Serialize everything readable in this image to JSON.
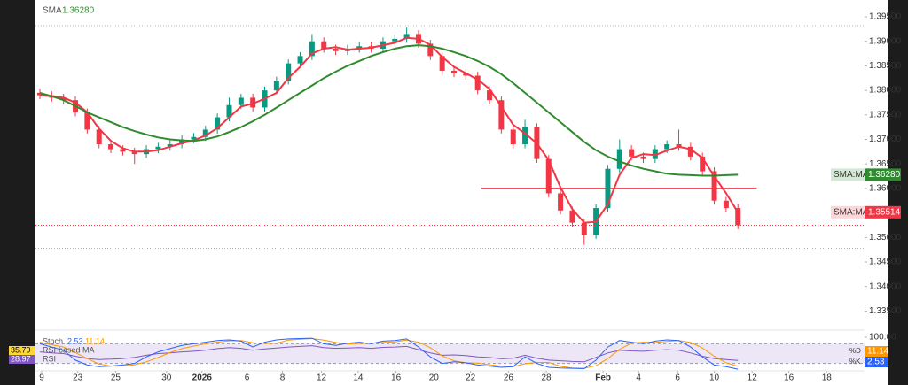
{
  "chart_data": {
    "type": "candlestick",
    "up_color": "#089981",
    "down_color": "#f23645",
    "xlim": [
      0,
      69.7
    ],
    "xticks": [
      {
        "value": 0.15,
        "label": "9"
      },
      {
        "value": 3.2,
        "label": "23"
      },
      {
        "value": 6.4,
        "label": "25"
      },
      {
        "value": 10.7,
        "label": "30"
      },
      {
        "value": 13.7,
        "label": "2026"
      },
      {
        "value": 17.5,
        "label": "6"
      },
      {
        "value": 20.5,
        "label": "8"
      },
      {
        "value": 23.8,
        "label": "12"
      },
      {
        "value": 26.9,
        "label": "14"
      },
      {
        "value": 30.1,
        "label": "16"
      },
      {
        "value": 33.3,
        "label": "20"
      },
      {
        "value": 36.4,
        "label": "22"
      },
      {
        "value": 39.6,
        "label": "26"
      },
      {
        "value": 42.8,
        "label": "28"
      },
      {
        "value": 47.6,
        "label": "Feb"
      },
      {
        "value": 50.6,
        "label": "4"
      },
      {
        "value": 53.9,
        "label": "6"
      },
      {
        "value": 57.0,
        "label": "10"
      },
      {
        "value": 60.2,
        "label": "12"
      },
      {
        "value": 63.3,
        "label": "16"
      },
      {
        "value": 66.5,
        "label": "18"
      }
    ],
    "ylim": [
      1.33164,
      1.39843
    ],
    "yticks": [
      {
        "value": 1.395,
        "label": "1.39500"
      },
      {
        "value": 1.39,
        "label": "1.39000"
      },
      {
        "value": 1.385,
        "label": "1.38500"
      },
      {
        "value": 1.38,
        "label": "1.38000"
      },
      {
        "value": 1.375,
        "label": "1.37500"
      },
      {
        "value": 1.37,
        "label": "1.37000"
      },
      {
        "value": 1.365,
        "label": "1.36500"
      },
      {
        "value": 1.36,
        "label": "1.36000"
      },
      {
        "value": 1.355,
        "label": "1.35500"
      },
      {
        "value": 1.35,
        "label": "1.35000"
      },
      {
        "value": 1.345,
        "label": "1.34500"
      },
      {
        "value": 1.34,
        "label": "1.34000"
      },
      {
        "value": 1.335,
        "label": "1.33500"
      }
    ],
    "candles": {
      "open": [
        1.3795,
        1.379,
        1.3785,
        1.378,
        1.3755,
        1.372,
        1.369,
        1.368,
        1.3675,
        1.367,
        1.368,
        1.3685,
        1.369,
        1.37,
        1.3705,
        1.372,
        1.3745,
        1.377,
        1.3785,
        1.3765,
        1.38,
        1.382,
        1.3855,
        1.387,
        1.39,
        1.3885,
        1.388,
        1.3885,
        1.389,
        1.3885,
        1.39,
        1.3905,
        1.3915,
        1.3895,
        1.387,
        1.384,
        1.3835,
        1.383,
        1.38,
        1.378,
        1.372,
        1.369,
        1.3725,
        1.366,
        1.359,
        1.3555,
        1.353,
        1.3505,
        1.356,
        1.364,
        1.368,
        1.3665,
        1.366,
        1.368,
        1.369,
        1.3685,
        1.3665,
        1.3635,
        1.3575,
        1.356
      ],
      "high": [
        1.3803,
        1.3798,
        1.3793,
        1.3788,
        1.3763,
        1.3728,
        1.3698,
        1.3688,
        1.3683,
        1.3688,
        1.3693,
        1.3698,
        1.3708,
        1.3713,
        1.3728,
        1.3753,
        1.3785,
        1.3793,
        1.3793,
        1.3808,
        1.3828,
        1.3863,
        1.3878,
        1.3915,
        1.3908,
        1.3893,
        1.3893,
        1.3898,
        1.3898,
        1.3908,
        1.3913,
        1.3928,
        1.3923,
        1.3903,
        1.3878,
        1.3848,
        1.3843,
        1.3838,
        1.3808,
        1.3788,
        1.3728,
        1.374,
        1.3733,
        1.3668,
        1.3598,
        1.3563,
        1.3538,
        1.3568,
        1.3648,
        1.37,
        1.3688,
        1.3673,
        1.3688,
        1.3698,
        1.372,
        1.3693,
        1.3673,
        1.3643,
        1.3583,
        1.3568
      ],
      "low": [
        1.3782,
        1.3777,
        1.3772,
        1.3747,
        1.3712,
        1.3682,
        1.3672,
        1.3667,
        1.365,
        1.3662,
        1.3672,
        1.3677,
        1.3682,
        1.3692,
        1.3697,
        1.3712,
        1.3737,
        1.3762,
        1.3757,
        1.3757,
        1.3792,
        1.3812,
        1.3847,
        1.3862,
        1.3877,
        1.3872,
        1.3872,
        1.3877,
        1.3877,
        1.3877,
        1.3892,
        1.3897,
        1.3887,
        1.3862,
        1.3832,
        1.3827,
        1.3822,
        1.3792,
        1.3772,
        1.3712,
        1.3682,
        1.3682,
        1.3652,
        1.3582,
        1.3547,
        1.3522,
        1.3485,
        1.3497,
        1.3552,
        1.3632,
        1.3657,
        1.3652,
        1.3652,
        1.3672,
        1.3677,
        1.3657,
        1.3627,
        1.3567,
        1.3552,
        1.3517
      ],
      "close": [
        1.379,
        1.3785,
        1.378,
        1.3755,
        1.372,
        1.369,
        1.368,
        1.3675,
        1.367,
        1.368,
        1.3685,
        1.369,
        1.37,
        1.3705,
        1.372,
        1.3745,
        1.377,
        1.3785,
        1.3765,
        1.38,
        1.382,
        1.3855,
        1.387,
        1.39,
        1.3885,
        1.388,
        1.3885,
        1.389,
        1.3885,
        1.39,
        1.3905,
        1.3915,
        1.3895,
        1.387,
        1.384,
        1.3835,
        1.383,
        1.38,
        1.378,
        1.372,
        1.369,
        1.3725,
        1.366,
        1.359,
        1.3555,
        1.353,
        1.3505,
        1.356,
        1.364,
        1.368,
        1.3665,
        1.366,
        1.368,
        1.369,
        1.3685,
        1.3665,
        1.3635,
        1.3575,
        1.356,
        1.3525
      ]
    },
    "series": [
      {
        "name": "SMA",
        "color": "#f23645",
        "axis_tag": "SMA:MA",
        "price_label": "1.35514",
        "values": [
          1.379,
          1.3788,
          1.3785,
          1.3775,
          1.3755,
          1.3722,
          1.3697,
          1.3682,
          1.3675,
          1.3675,
          1.3678,
          1.3685,
          1.3692,
          1.3698,
          1.3708,
          1.3723,
          1.3745,
          1.3767,
          1.3773,
          1.3783,
          1.3795,
          1.3825,
          1.3848,
          1.3875,
          1.3885,
          1.3888,
          1.3883,
          1.3885,
          1.3887,
          1.3892,
          1.3897,
          1.3907,
          1.3905,
          1.3893,
          1.3868,
          1.3848,
          1.3835,
          1.3822,
          1.3803,
          1.3767,
          1.373,
          1.3712,
          1.3692,
          1.3658,
          1.3602,
          1.3558,
          1.353,
          1.3532,
          1.3568,
          1.3628,
          1.3662,
          1.367,
          1.3668,
          1.3677,
          1.3685,
          1.368,
          1.3662,
          1.3625,
          1.359,
          1.35514
        ]
      },
      {
        "name": "SMA",
        "color": "#2e8b2e",
        "axis_tag": "SMA:MA",
        "price_label": "1.36280",
        "legend": true,
        "values": [
          1.3795,
          1.3788,
          1.378,
          1.3768,
          1.3755,
          1.3745,
          1.3735,
          1.3725,
          1.3717,
          1.371,
          1.3704,
          1.37,
          1.3698,
          1.3697,
          1.37,
          1.3706,
          1.3715,
          1.3725,
          1.3737,
          1.375,
          1.3765,
          1.378,
          1.3795,
          1.381,
          1.3825,
          1.3838,
          1.385,
          1.386,
          1.387,
          1.3878,
          1.3885,
          1.389,
          1.3892,
          1.389,
          1.3885,
          1.3878,
          1.387,
          1.386,
          1.3848,
          1.3833,
          1.3815,
          1.3795,
          1.3775,
          1.3755,
          1.3735,
          1.3715,
          1.3695,
          1.3678,
          1.3665,
          1.3655,
          1.3647,
          1.364,
          1.3635,
          1.363,
          1.3628,
          1.3627,
          1.3626,
          1.3626,
          1.3627,
          1.3628
        ]
      }
    ],
    "level_line": {
      "value": 1.36,
      "start": 37.3,
      "end": 60.6,
      "color": "#f23645"
    },
    "dotted_lines": [
      1.3932,
      1.3478
    ],
    "indicator": {
      "ylim": [
        0,
        100
      ],
      "yticks": [
        {
          "value": 100,
          "label": "100.00"
        }
      ],
      "band": [
        20,
        80
      ],
      "name": "Stoch",
      "k": {
        "name": "%K",
        "color": "#2962ff",
        "price_label": "2.53",
        "values": [
          80,
          70,
          60,
          30,
          15,
          10,
          12,
          15,
          20,
          40,
          55,
          65,
          75,
          80,
          85,
          90,
          92,
          88,
          70,
          85,
          92,
          95,
          96,
          97,
          80,
          75,
          82,
          85,
          80,
          88,
          90,
          95,
          70,
          40,
          20,
          25,
          22,
          15,
          12,
          8,
          10,
          40,
          20,
          8,
          6,
          5,
          4,
          30,
          70,
          90,
          85,
          80,
          88,
          92,
          90,
          70,
          40,
          15,
          10,
          2.53
        ]
      },
      "d": {
        "name": "%D",
        "color": "#ff9800",
        "price_label": "11.14",
        "values": [
          85,
          77,
          70,
          53,
          35,
          18,
          12,
          12,
          16,
          25,
          38,
          53,
          65,
          73,
          80,
          85,
          89,
          90,
          83,
          81,
          82,
          91,
          94,
          96,
          91,
          84,
          79,
          81,
          82,
          84,
          86,
          91,
          85,
          68,
          43,
          28,
          22,
          21,
          16,
          12,
          10,
          19,
          23,
          23,
          11,
          6,
          5,
          13,
          35,
          63,
          82,
          85,
          84,
          87,
          90,
          84,
          67,
          42,
          22,
          11.14
        ]
      },
      "rsi": {
        "name": "RSI",
        "color": "#7e57c2",
        "last": 28.97,
        "values": [
          55,
          52,
          50,
          42,
          35,
          32,
          33,
          35,
          38,
          45,
          50,
          52,
          55,
          57,
          60,
          65,
          68,
          66,
          60,
          64,
          67,
          70,
          72,
          74,
          68,
          66,
          67,
          68,
          66,
          69,
          70,
          72,
          62,
          52,
          45,
          46,
          44,
          40,
          38,
          34,
          36,
          45,
          36,
          30,
          28,
          26,
          25,
          38,
          52,
          60,
          58,
          57,
          60,
          62,
          60,
          52,
          42,
          35,
          32,
          28.97
        ]
      },
      "rsi_ma": {
        "name": "RSI-based MA",
        "color": "#fdd835",
        "last": 35.79
      }
    }
  }
}
